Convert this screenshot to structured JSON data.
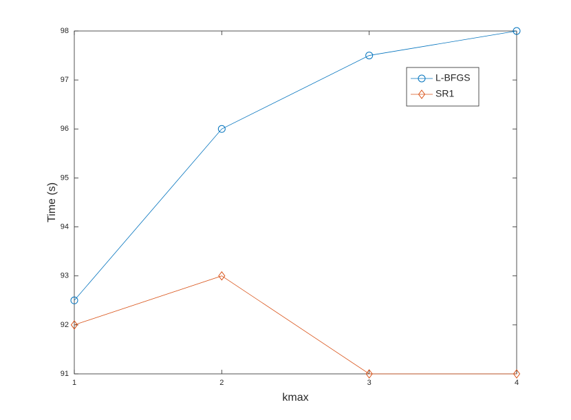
{
  "chart_data": {
    "type": "line",
    "xlabel": "kmax",
    "ylabel": "Time (s)",
    "x": [
      1,
      2,
      3,
      4
    ],
    "series": [
      {
        "name": "L-BFGS",
        "color": "#0072bd",
        "marker": "circle",
        "values": [
          92.5,
          96,
          97.5,
          98
        ]
      },
      {
        "name": "SR1",
        "color": "#d95319",
        "marker": "diamond",
        "values": [
          92,
          93,
          91,
          91
        ]
      }
    ],
    "xlim": [
      1,
      4
    ],
    "xticks": [
      1,
      2,
      3,
      4
    ],
    "ylim": [
      91,
      98
    ],
    "yticks": [
      91,
      92,
      93,
      94,
      95,
      96,
      97,
      98
    ],
    "grid": false,
    "legend_position": "northeast"
  }
}
